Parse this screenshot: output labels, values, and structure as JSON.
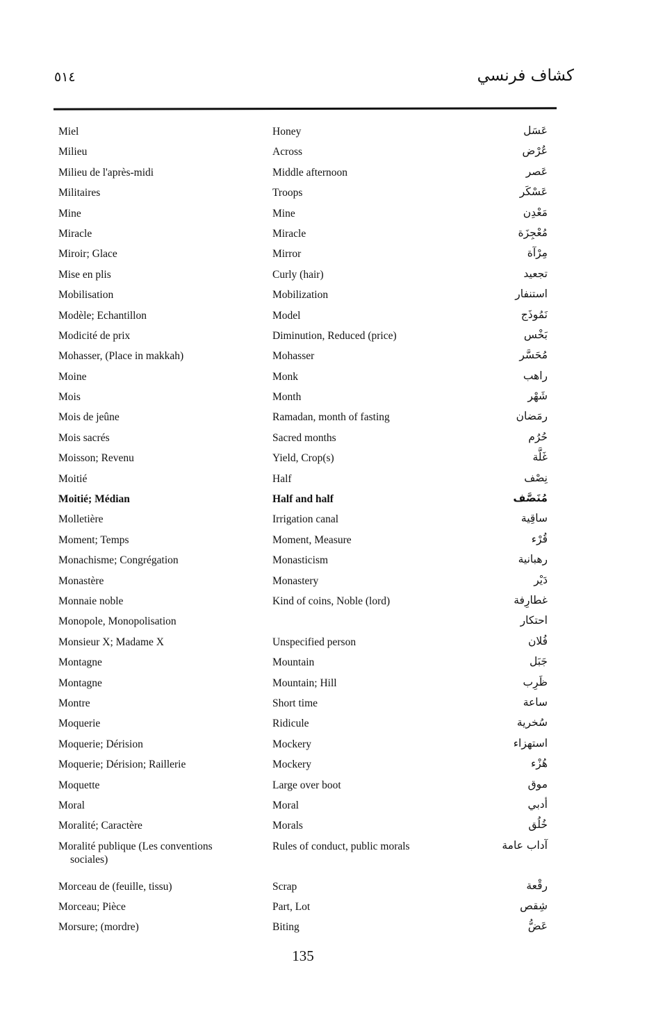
{
  "header": {
    "page_number_arabic": "٥١٤",
    "title_arabic": "كشاف فرنسي"
  },
  "glossary": {
    "rows": [
      {
        "fr": "Miel",
        "en": "Honey",
        "ar": "عَسَل"
      },
      {
        "fr": "Milieu",
        "en": "Across",
        "ar": "عُرْض"
      },
      {
        "fr": "Milieu de l'après-midi",
        "en": "Middle afternoon",
        "ar": "عَصر"
      },
      {
        "fr": "Militaires",
        "en": "Troops",
        "ar": "عَسْكَر"
      },
      {
        "fr": "Mine",
        "en": "Mine",
        "ar": "مَعْدِن"
      },
      {
        "fr": "Miracle",
        "en": "Miracle",
        "ar": "مُعْجِزَة"
      },
      {
        "fr": "Miroir; Glace",
        "en": "Mirror",
        "ar": "مِرْآة"
      },
      {
        "fr": "Mise en plis",
        "en": "Curly (hair)",
        "ar": "تجعيد"
      },
      {
        "fr": "Mobilisation",
        "en": "Mobilization",
        "ar": "استنفار"
      },
      {
        "fr": "Modèle; Echantillon",
        "en": "Model",
        "ar": "نَمُوذَج"
      },
      {
        "fr": "Modicité de prix",
        "en": "Diminution, Reduced (price)",
        "ar": "بَخْس"
      },
      {
        "fr": "Mohasser, (Place in makkah)",
        "en": "Mohasser",
        "ar": "مُحَسَّر"
      },
      {
        "fr": "Moine",
        "en": "Monk",
        "ar": "راهب"
      },
      {
        "fr": "Mois",
        "en": "Month",
        "ar": "شَهْر"
      },
      {
        "fr": "Mois de jeûne",
        "en": "Ramadan, month of fasting",
        "ar": "رمَضان"
      },
      {
        "fr": "Mois sacrés",
        "en": "Sacred months",
        "ar": "حُرُم"
      },
      {
        "fr": "Moisson; Revenu",
        "en": "Yield, Crop(s)",
        "ar": "غَلَّة"
      },
      {
        "fr": "Moitié",
        "en": "Half",
        "ar": "نِصْف"
      },
      {
        "fr": "Moitié; Médian",
        "en": "Half and half",
        "ar": "مُنَصَّف",
        "bold": true
      },
      {
        "fr": "Molletière",
        "en": "Irrigation canal",
        "ar": "ساقِية"
      },
      {
        "fr": "Moment; Temps",
        "en": "Moment, Measure",
        "ar": "قُرْء"
      },
      {
        "fr": "Monachisme; Congrégation",
        "en": "Monasticism",
        "ar": "رهبانية"
      },
      {
        "fr": "Monastère",
        "en": "Monastery",
        "ar": "دَيْر"
      },
      {
        "fr": "Monnaie noble",
        "en": "Kind of coins, Noble (lord)",
        "ar": "غطارِفة"
      },
      {
        "fr": "Monopole, Monopolisation",
        "en": "",
        "ar": "احتكار"
      },
      {
        "fr": "Monsieur X; Madame X",
        "en": "Unspecified person",
        "ar": "فُلان"
      },
      {
        "fr": "Montagne",
        "en": "Mountain",
        "ar": "جَبَل"
      },
      {
        "fr": "Montagne",
        "en": "Mountain; Hill",
        "ar": "ظَرِب"
      },
      {
        "fr": "Montre",
        "en": "Short time",
        "ar": "ساعة"
      },
      {
        "fr": "Moquerie",
        "en": "Ridicule",
        "ar": "سُخرية"
      },
      {
        "fr": "Moquerie; Dérision",
        "en": "Mockery",
        "ar": "استهزاء"
      },
      {
        "fr": "Moquerie; Dérision; Raillerie",
        "en": "Mockery",
        "ar": "هُزْء"
      },
      {
        "fr": "Moquette",
        "en": "Large over boot",
        "ar": "موق"
      },
      {
        "fr": "Moral",
        "en": "Moral",
        "ar": "أدبي"
      },
      {
        "fr": "Moralité; Caractère",
        "en": "Morals",
        "ar": "خُلُق"
      },
      {
        "fr": "Moralité publique (Les conventions",
        "fr2": "sociales)",
        "en": "Rules of conduct, public morals",
        "ar": "آداب عامة"
      },
      {
        "fr": "Morceau de (feuille, tissu)",
        "en": "Scrap",
        "ar": "رقْعة"
      },
      {
        "fr": "Morceau; Pièce",
        "en": "Part, Lot",
        "ar": "شِقص"
      },
      {
        "fr": "Morsure; (mordre)",
        "en": "Biting",
        "ar": "عَضُّ"
      }
    ]
  },
  "footer": {
    "page_number": "135"
  }
}
